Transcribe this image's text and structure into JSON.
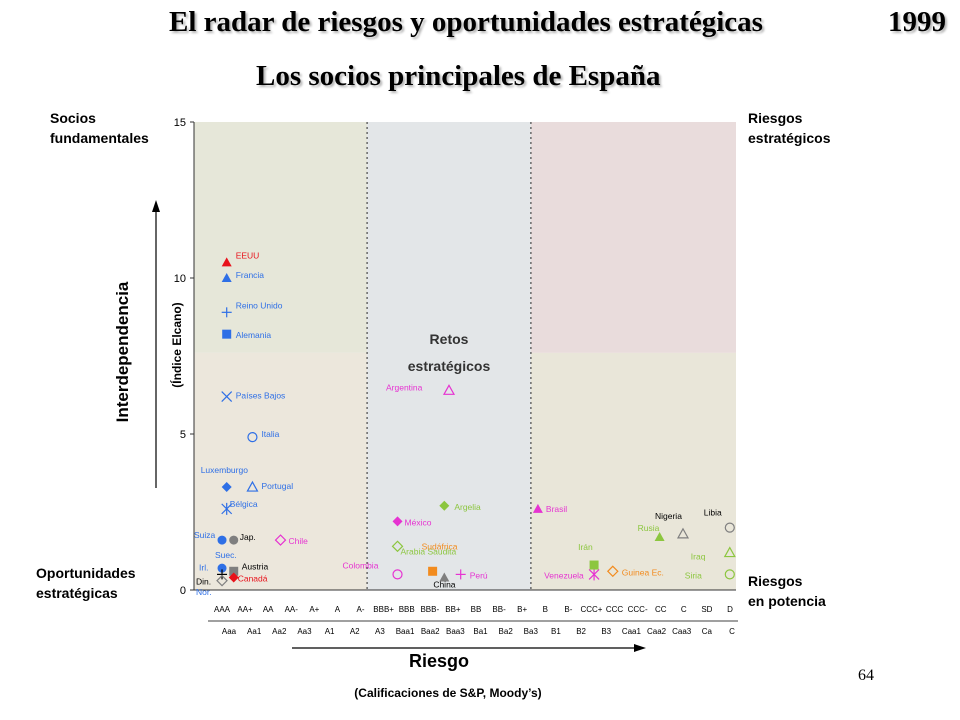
{
  "header": {
    "title": "El radar de riesgos y oportunidades estratégicas",
    "year": "1999",
    "subtitle": "Los socios principales de España"
  },
  "corners": {
    "top_left": "Socios\nfundamentales",
    "top_right": "Riesgos\nestratégicos",
    "bottom_left": "Oportunidades\nestratégicas",
    "bottom_right": "Riesgos\nen potencia"
  },
  "page_number": "64",
  "chart_data": {
    "type": "scatter",
    "ylabel": "Interdependencia",
    "ylabel_sub": "(Índice Elcano)",
    "xlabel": "Riesgo",
    "xlabel_sub": "(Calificaciones de S&P, Moody’s)",
    "ylim": [
      0,
      15
    ],
    "yticks": [
      0,
      5,
      10,
      15
    ],
    "xlim": [
      0,
      22
    ],
    "x_ticks_sp": [
      "AAA",
      "AA+",
      "AA",
      "AA-",
      "A+",
      "A",
      "A-",
      "BBB+",
      "BBB",
      "BBB-",
      "BB+",
      "BB",
      "BB-",
      "B+",
      "B",
      "B-",
      "CCC+",
      "CCC",
      "CCC-",
      "CC",
      "C",
      "SD",
      "D"
    ],
    "x_ticks_moodys": [
      "Aaa",
      "Aa1",
      "Aa2",
      "Aa3",
      "A1",
      "A2",
      "A3",
      "Baa1",
      "Baa2",
      "Baa3",
      "Ba1",
      "Ba2",
      "Ba3",
      "B1",
      "B2",
      "B3",
      "Caa1",
      "Caa2",
      "Caa3",
      "Ca",
      "C"
    ],
    "region_label": "Retos\nestratégicos",
    "regions": {
      "y_split": 7.6,
      "x_splits": [
        6.5,
        13.5
      ],
      "colors": {
        "top_left": "#e6e7d9",
        "top_middle": "#e3e6e8",
        "top_right": "#e9dcdc",
        "bottom_left": "#ece7dc",
        "bottom_middle": "#e3e6e8",
        "bottom_right": "#e9e6d9"
      }
    },
    "points": [
      {
        "name": "EEUU",
        "x": 0.5,
        "y": 10.5,
        "marker": "triangle-filled",
        "color": "#e8121b",
        "label_color": "#e8121b"
      },
      {
        "name": "Francia",
        "x": 0.5,
        "y": 10.0,
        "marker": "triangle-filled",
        "color": "#2e6fe6",
        "label_color": "#2e6fe6"
      },
      {
        "name": "Reino Unido",
        "x": 0.5,
        "y": 8.9,
        "marker": "plus",
        "color": "#2e6fe6",
        "label_color": "#2e6fe6"
      },
      {
        "name": "Alemania",
        "x": 0.5,
        "y": 8.2,
        "marker": "square-filled",
        "color": "#2e6fe6",
        "label_color": "#2e6fe6"
      },
      {
        "name": "Países Bajos",
        "x": 0.5,
        "y": 6.2,
        "marker": "x",
        "color": "#2e6fe6",
        "label_color": "#2e6fe6"
      },
      {
        "name": "Italia",
        "x": 1.6,
        "y": 4.9,
        "marker": "circle-open",
        "color": "#2e6fe6",
        "label_color": "#2e6fe6"
      },
      {
        "name": "Luxemburgo",
        "x": 0.5,
        "y": 3.3,
        "marker": "diamond-filled",
        "color": "#2e6fe6",
        "label_color": "#2e6fe6"
      },
      {
        "name": "Portugal",
        "x": 1.6,
        "y": 3.3,
        "marker": "triangle-open",
        "color": "#2e6fe6",
        "label_color": "#2e6fe6"
      },
      {
        "name": "Bélgica",
        "x": 0.5,
        "y": 2.6,
        "marker": "asterisk",
        "color": "#2e6fe6",
        "label_color": "#2e6fe6"
      },
      {
        "name": "Suiza",
        "x": 0.3,
        "y": 1.6,
        "marker": "circle-filled",
        "color": "#2e6fe6",
        "label_color": "#2e6fe6"
      },
      {
        "name": "Jap.",
        "x": 0.8,
        "y": 1.6,
        "marker": "circle-filled",
        "color": "#7f7f7f",
        "label_color": "#000000"
      },
      {
        "name": "Chile",
        "x": 2.8,
        "y": 1.6,
        "marker": "diamond-open",
        "color": "#e633d1",
        "label_color": "#e633d1"
      },
      {
        "name": "Suec.",
        "x": 0.3,
        "y": 0.7,
        "marker": "circle-filled",
        "color": "#2e6fe6",
        "label_color": "#2e6fe6"
      },
      {
        "name": "Austria",
        "x": 0.8,
        "y": 0.6,
        "marker": "square-filled",
        "color": "#7f7f7f",
        "label_color": "#000000"
      },
      {
        "name": "Irl.",
        "x": 0.3,
        "y": 0.5,
        "marker": "plus",
        "color": "#000000",
        "label_color": "#2e6fe6"
      },
      {
        "name": "Canadá",
        "x": 0.8,
        "y": 0.4,
        "marker": "diamond-filled",
        "color": "#e8121b",
        "label_color": "#e8121b"
      },
      {
        "name": "Din.",
        "x": 0.3,
        "y": 0.3,
        "marker": "diamond-open",
        "color": "#7f7f7f",
        "label_color": "#000000"
      },
      {
        "name": "Nor.",
        "x": 0.3,
        "y": 0.0,
        "marker": "none",
        "color": "#2e6fe6",
        "label_color": "#2e6fe6"
      },
      {
        "name": "Argentina",
        "x": 10.0,
        "y": 6.4,
        "marker": "triangle-open",
        "color": "#e633d1",
        "label_color": "#e633d1"
      },
      {
        "name": "Argelia",
        "x": 9.8,
        "y": 2.7,
        "marker": "diamond-filled",
        "color": "#8cc63f",
        "label_color": "#8cc63f"
      },
      {
        "name": "Brasil",
        "x": 13.8,
        "y": 2.6,
        "marker": "triangle-filled",
        "color": "#e633d1",
        "label_color": "#e633d1"
      },
      {
        "name": "México",
        "x": 7.8,
        "y": 2.2,
        "marker": "diamond-filled",
        "color": "#e633d1",
        "label_color": "#e633d1"
      },
      {
        "name": "Arabia Saudita",
        "x": 7.8,
        "y": 1.4,
        "marker": "diamond-open",
        "color": "#8cc63f",
        "label_color": "#8cc63f"
      },
      {
        "name": "Sudáfrica",
        "x": 9.3,
        "y": 0.6,
        "marker": "square-filled",
        "color": "#f28b1e",
        "label_color": "#f28b1e"
      },
      {
        "name": "Colombia",
        "x": 7.8,
        "y": 0.5,
        "marker": "circle-open",
        "color": "#e633d1",
        "label_color": "#e633d1"
      },
      {
        "name": "Perú",
        "x": 10.5,
        "y": 0.5,
        "marker": "plus",
        "color": "#e633d1",
        "label_color": "#e633d1"
      },
      {
        "name": "China",
        "x": 9.8,
        "y": 0.4,
        "marker": "triangle-filled",
        "color": "#7f7f7f",
        "label_color": "#000000"
      },
      {
        "name": "Venezuela",
        "x": 16.2,
        "y": 0.5,
        "marker": "asterisk",
        "color": "#e633d1",
        "label_color": "#e633d1"
      },
      {
        "name": "Irán",
        "x": 16.2,
        "y": 0.8,
        "marker": "square-filled",
        "color": "#8cc63f",
        "label_color": "#8cc63f"
      },
      {
        "name": "Rusia",
        "x": 19.0,
        "y": 1.7,
        "marker": "triangle-filled",
        "color": "#8cc63f",
        "label_color": "#8cc63f"
      },
      {
        "name": "Nigeria",
        "x": 20.0,
        "y": 1.8,
        "marker": "triangle-open",
        "color": "#7f7f7f",
        "label_color": "#000000"
      },
      {
        "name": "Guinea Ec.",
        "x": 17.0,
        "y": 0.6,
        "marker": "diamond-open",
        "color": "#f28b1e",
        "label_color": "#f28b1e"
      },
      {
        "name": "Libia",
        "x": 22.0,
        "y": 2.0,
        "marker": "circle-open",
        "color": "#7f7f7f",
        "label_color": "#000000"
      },
      {
        "name": "Iraq",
        "x": 22.0,
        "y": 1.2,
        "marker": "triangle-open",
        "color": "#8cc63f",
        "label_color": "#8cc63f"
      },
      {
        "name": "Siria",
        "x": 22.0,
        "y": 0.5,
        "marker": "circle-open",
        "color": "#8cc63f",
        "label_color": "#8cc63f"
      }
    ]
  }
}
